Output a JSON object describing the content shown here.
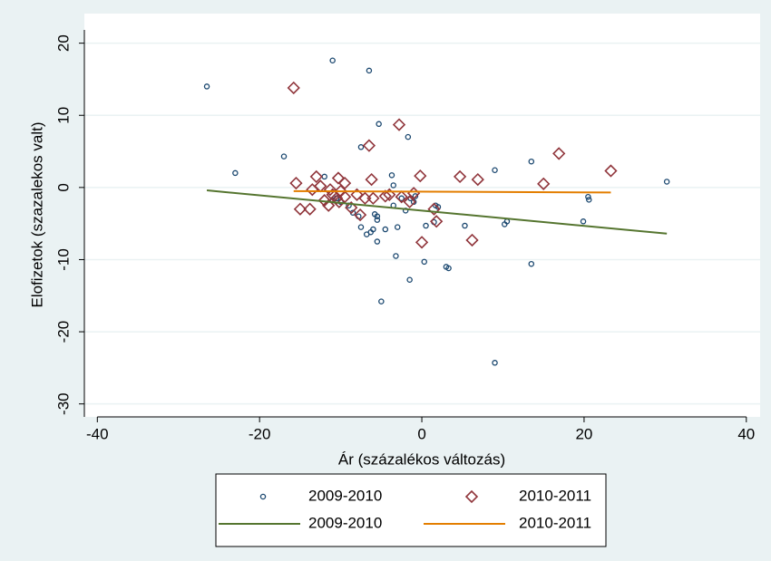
{
  "chart_data": {
    "type": "scatter",
    "xlabel": "Ár (százalékos változás)",
    "ylabel": "Elofizetok (szazalekos valt)",
    "xlim": [
      -41.6,
      41.7
    ],
    "ylim": [
      -31.8,
      24.1
    ],
    "xticks": [
      -40,
      -20,
      0,
      20,
      40
    ],
    "yticks": [
      20,
      10,
      0,
      -10,
      -20,
      -30
    ],
    "grid": true,
    "series": [
      {
        "name": "2009-2010",
        "type": "scatter",
        "marker": "circle",
        "color": "#1a476f",
        "x": [
          -26.5,
          -23,
          -17,
          -11,
          -6.5,
          -5.3,
          -1.7,
          -7.5,
          -12,
          -3.7,
          -3.5,
          9,
          13.5,
          30.2,
          20.5,
          20.6,
          19.9,
          10.5,
          10.2,
          5.3,
          0.5,
          1.5,
          1.7,
          2,
          -2.5,
          -2,
          -3,
          -3.5,
          -4.5,
          -5.5,
          -5.5,
          -5.8,
          -6,
          -6.3,
          -5.5,
          -6.8,
          -7.5,
          -7.8,
          -8.5,
          -9,
          -10,
          -10.5,
          -11,
          -1.4,
          -1,
          -0.8,
          -3.2,
          0.3,
          3,
          3.3,
          13.5,
          -1.5,
          -5,
          9
        ],
        "y": [
          14,
          2,
          4.3,
          17.6,
          16.2,
          8.8,
          7,
          5.6,
          1.5,
          1.7,
          0.3,
          2.4,
          3.6,
          0.8,
          -1.3,
          -1.7,
          -4.7,
          -4.7,
          -5.1,
          -5.3,
          -5.3,
          -4.8,
          -2.5,
          -2.7,
          -1.5,
          -3.2,
          -5.5,
          -2.5,
          -5.8,
          -4,
          -4.5,
          -3.7,
          -5.8,
          -6.2,
          -7.5,
          -6.5,
          -5.5,
          -4,
          -3.5,
          -2.5,
          -2,
          -1.5,
          -1.8,
          -1.5,
          -2,
          -1.2,
          -9.5,
          -10.3,
          -11,
          -11.2,
          -10.6,
          -12.8,
          -15.8,
          -24.3
        ]
      },
      {
        "name": "2010-2011",
        "type": "scatter",
        "marker": "diamond",
        "color": "#90353b",
        "x": [
          -15.8,
          -2.8,
          -6.5,
          16.9,
          23.3,
          4.7,
          -0.2,
          -6.2,
          6.9,
          15,
          -15.5,
          -13,
          -12.5,
          -13.5,
          -10.3,
          -9.5,
          -11.3,
          -10,
          -11,
          -10.5,
          -9.5,
          -8,
          -7,
          -6,
          -4.5,
          -4,
          -2.5,
          -1,
          -1.5,
          -8.7,
          -11.5,
          -13.8,
          -15,
          1.5,
          1.8,
          0,
          6.2,
          -12,
          -10.2,
          -7.6
        ],
        "y": [
          13.8,
          8.7,
          5.8,
          4.7,
          2.3,
          1.5,
          1.6,
          1.1,
          1.1,
          0.5,
          0.6,
          1.5,
          0.2,
          -0.3,
          1.3,
          0.6,
          -0.3,
          -0.5,
          -1,
          -1.5,
          -1.3,
          -1,
          -1.5,
          -1.5,
          -1.2,
          -1,
          -1.3,
          -0.8,
          -2,
          -2.8,
          -2.5,
          -3,
          -3,
          -3,
          -4.7,
          -7.6,
          -7.3,
          -1.8,
          -2,
          -3.8
        ]
      },
      {
        "name": "2009-2010",
        "type": "line",
        "color": "#55752f",
        "x": [
          -26.5,
          30.2
        ],
        "y": [
          -0.4,
          -6.4
        ]
      },
      {
        "name": "2010-2011",
        "type": "line",
        "color": "#e37e00",
        "x": [
          -15.8,
          23.3
        ],
        "y": [
          -0.5,
          -0.7
        ]
      }
    ]
  }
}
